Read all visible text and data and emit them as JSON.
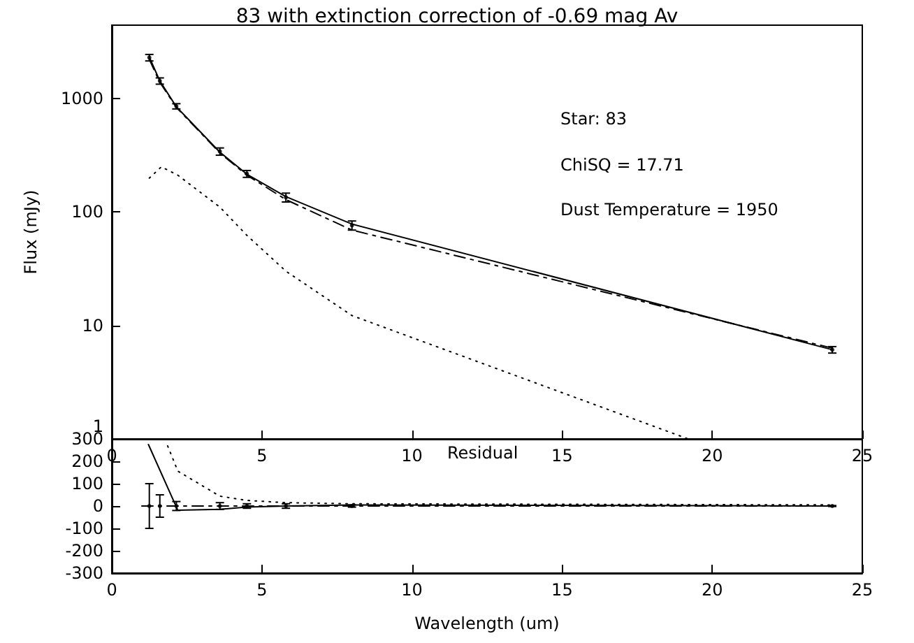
{
  "chart_data": [
    {
      "type": "line",
      "title": "83 with extinction correction of -0.69 mag Av",
      "ylabel": "Flux (mJy)",
      "log": "y",
      "xlim": [
        0,
        25
      ],
      "xticks": [
        0,
        5,
        10,
        15,
        20,
        25
      ],
      "ylim": [
        1,
        4400
      ],
      "yticks": [
        1,
        10,
        100,
        1000
      ],
      "grid": false,
      "annotations": [
        "Star: 83",
        "ChiSQ = 17.71",
        "Dust Temperature = 1950"
      ],
      "x": [
        1.25,
        1.6,
        2.15,
        3.6,
        4.5,
        5.8,
        8.0,
        24.0
      ],
      "series": [
        {
          "type": "scatter",
          "marker": "circle",
          "color": "#000000",
          "values": [
            2280,
            1420,
            850,
            340,
            216,
            134,
            76,
            6.1
          ],
          "errors": [
            150,
            90,
            45,
            25,
            15,
            12,
            7,
            0.4
          ]
        },
        {
          "type": "line",
          "line_style": "solid",
          "color": "#000000",
          "values": [
            2300,
            1420,
            840,
            335,
            214,
            136,
            78,
            6.1
          ]
        },
        {
          "type": "line",
          "line_style": "dashed",
          "color": "#000000",
          "values": [
            2200,
            1380,
            830,
            330,
            210,
            128,
            69,
            6.3
          ]
        },
        {
          "type": "line",
          "line_style": "dotted",
          "color": "#000000",
          "x": [
            1.25,
            1.65,
            2.2,
            3.6,
            4.5,
            5.8,
            8.0,
            19.2
          ],
          "values": [
            198,
            249,
            210,
            110,
            62,
            30,
            12.2,
            1
          ]
        }
      ]
    },
    {
      "type": "line",
      "xlabel": "Wavelength (um)",
      "xlim": [
        0,
        25
      ],
      "xticks": [
        0,
        5,
        10,
        15,
        20,
        25
      ],
      "ylim": [
        -300,
        300
      ],
      "yticks": [
        -300,
        -200,
        -100,
        0,
        100,
        200,
        300
      ],
      "grid": false,
      "annotations": [
        "Residual"
      ],
      "x": [
        1.25,
        1.6,
        2.15,
        3.6,
        4.5,
        5.8,
        8.0,
        24.0
      ],
      "series": [
        {
          "type": "scatter",
          "marker": "circle",
          "color": "#000000",
          "values": [
            0,
            0,
            0,
            0,
            0,
            0,
            0,
            0
          ],
          "errors": [
            100,
            50,
            20,
            15,
            10,
            10,
            5,
            2
          ]
        },
        {
          "type": "line",
          "line_style": "dashed",
          "color": "#000000",
          "x": [
            1.0,
            24.0
          ],
          "values": [
            0,
            0
          ]
        },
        {
          "type": "line",
          "line_style": "solid",
          "color": "#000000",
          "x": [
            1.22,
            2.2,
            3.6,
            4.5,
            5.8,
            8.0,
            24.0
          ],
          "values": [
            275,
            -19,
            -15,
            -5,
            0,
            5,
            0
          ]
        },
        {
          "type": "line",
          "line_style": "dotted",
          "color": "#000000",
          "x": [
            1.86,
            2.2,
            3.6,
            4.5,
            5.8,
            8.0,
            24.0
          ],
          "values": [
            269,
            156,
            44,
            25,
            15,
            10,
            5
          ]
        }
      ]
    }
  ]
}
